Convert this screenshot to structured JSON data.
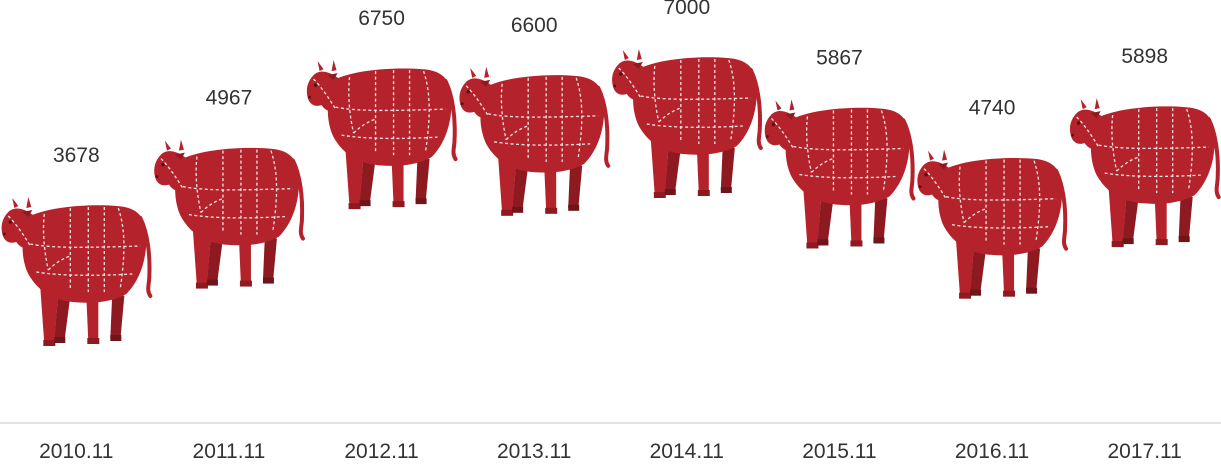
{
  "colors": {
    "cow_body": "#b4232b",
    "cow_dark": "#8d1a21",
    "cut_lines": "#f4e4e4",
    "axis_line": "#d9d9d9",
    "text": "#333333"
  },
  "chart_data": {
    "type": "bar",
    "mark_style": "cow-pictogram",
    "categories": [
      "2010.11",
      "2011.11",
      "2012.11",
      "2013.11",
      "2014.11",
      "2015.11",
      "2016.11",
      "2017.11"
    ],
    "values": [
      3678,
      4967,
      6750,
      6600,
      7000,
      5867,
      4740,
      5898
    ],
    "title": "",
    "xlabel": "",
    "ylabel": "",
    "grid": false,
    "legend": "none"
  }
}
